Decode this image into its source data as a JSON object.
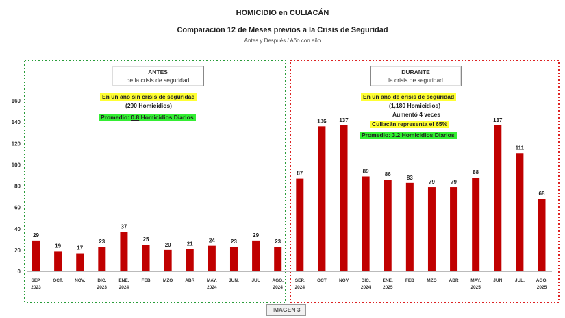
{
  "header": {
    "title": "HOMICIDIO en CULIACÁN",
    "subtitle": "Comparación 12 de Meses previos a la Crisis de Seguridad",
    "caption": "Antes y Después / Año con año"
  },
  "panels": {
    "antes": {
      "heading": "ANTES",
      "subheading": "de la crisis de seguridad",
      "line1": "En un año sin crisis de seguridad",
      "line2": "(290 Homicidios)",
      "avg_prefix": "Promedio: ",
      "avg_value": "0.8",
      "avg_suffix": " Homicidios Diarios",
      "border_color": "#2a9d3a"
    },
    "durante": {
      "heading": "DURANTE",
      "subheading": "la crisis de seguridad",
      "line1": "En un año de crisis de seguridad",
      "line2": "(1,180 Homicidios)",
      "line3": "Aumentó 4 veces",
      "line4": "Culiacán representa el 65%",
      "avg_prefix": "Promedio: ",
      "avg_value": "3.2",
      "avg_suffix": " Homicidios Diarios",
      "border_color": "#dd2222"
    }
  },
  "footer": {
    "label": "IMAGEN 3"
  },
  "colors": {
    "bar": "#c00000"
  },
  "chart_data": {
    "type": "bar",
    "ylim": [
      0,
      160
    ],
    "yticks": [
      0,
      20,
      40,
      60,
      80,
      100,
      120,
      140,
      160
    ],
    "grid": false,
    "categories": [
      [
        "SEP.",
        "2023"
      ],
      [
        "OCT."
      ],
      [
        "NOV."
      ],
      [
        "DIC.",
        "2023"
      ],
      [
        "ENE.",
        "2024"
      ],
      [
        "FEB"
      ],
      [
        "MZO"
      ],
      [
        "ABR"
      ],
      [
        "MAY.",
        "2024"
      ],
      [
        "JUN."
      ],
      [
        "JUL"
      ],
      [
        "AGO.",
        "2024"
      ],
      [
        "SEP.",
        "2024"
      ],
      [
        "OCT"
      ],
      [
        "NOV"
      ],
      [
        "DIC.",
        "2024"
      ],
      [
        "ENE.",
        "2025"
      ],
      [
        "FEB"
      ],
      [
        "MZO"
      ],
      [
        "ABR"
      ],
      [
        "MAY.",
        "2025"
      ],
      [
        "JUN"
      ],
      [
        "JUL."
      ],
      [
        "AGO.",
        "2025"
      ]
    ],
    "values": [
      29,
      19,
      17,
      23,
      37,
      25,
      20,
      21,
      24,
      23,
      29,
      23,
      87,
      136,
      137,
      89,
      86,
      83,
      79,
      79,
      88,
      137,
      111,
      68
    ]
  }
}
